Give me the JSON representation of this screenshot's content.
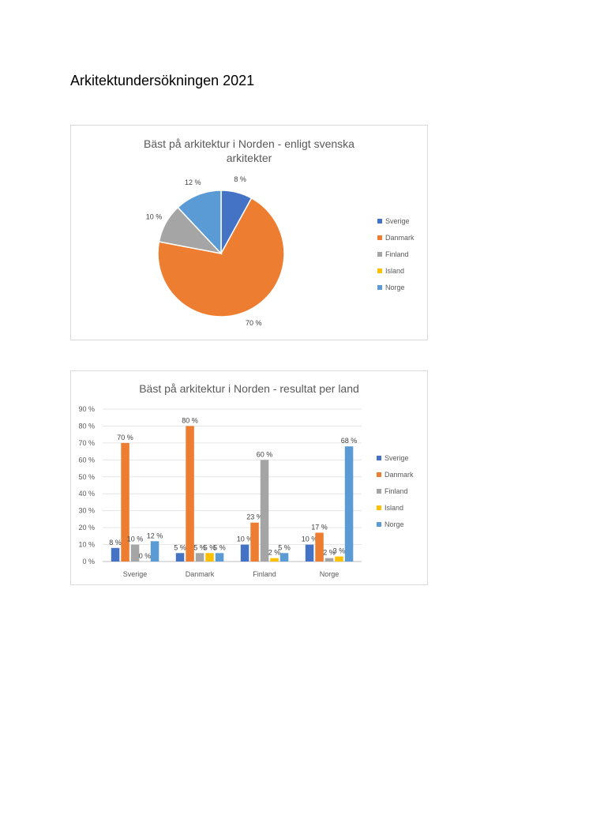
{
  "document": {
    "title": "Arkitektundersökningen 2021"
  },
  "colors": {
    "Sverige": "#4472c4",
    "Danmark": "#ed7d31",
    "Finland": "#a5a5a5",
    "Island": "#ffc000",
    "Norge": "#5b9bd5"
  },
  "chart_data": [
    {
      "type": "pie",
      "title": "Bäst på arkitektur i Norden - enligt svenska arkitekter",
      "title_lines": [
        "Bäst på arkitektur i Norden - enligt svenska",
        "arkitekter"
      ],
      "categories": [
        "Sverige",
        "Danmark",
        "Finland",
        "Island",
        "Norge"
      ],
      "values": [
        8,
        70,
        10,
        0,
        12
      ],
      "data_labels": [
        "8 %",
        "70 %",
        "10 %",
        "",
        "12 %"
      ],
      "legend": [
        "Sverige",
        "Danmark",
        "Finland",
        "Island",
        "Norge"
      ],
      "legend_position": "right"
    },
    {
      "type": "bar",
      "title": "Bäst på arkitektur i Norden - resultat per land",
      "categories": [
        "Sverige",
        "Danmark",
        "Finland",
        "Norge"
      ],
      "series": [
        {
          "name": "Sverige",
          "values": [
            8,
            5,
            10,
            10
          ],
          "labels": [
            "8 %",
            "5 %",
            "10 %",
            "10 %"
          ]
        },
        {
          "name": "Danmark",
          "values": [
            70,
            80,
            23,
            17
          ],
          "labels": [
            "70 %",
            "80 %",
            "23 %",
            "17 %"
          ]
        },
        {
          "name": "Finland",
          "values": [
            10,
            5,
            60,
            2
          ],
          "labels": [
            "10 %",
            "5 %",
            "60 %",
            "2 %"
          ]
        },
        {
          "name": "Island",
          "values": [
            0,
            5,
            2,
            3
          ],
          "labels": [
            "0 %",
            "5 %",
            "2 %",
            "3 %"
          ]
        },
        {
          "name": "Norge",
          "values": [
            12,
            5,
            5,
            68
          ],
          "labels": [
            "12 %",
            "5 %",
            "5 %",
            "68 %"
          ]
        }
      ],
      "yticks": [
        "0 %",
        "10 %",
        "20 %",
        "30 %",
        "40 %",
        "50 %",
        "60 %",
        "70 %",
        "80 %",
        "90 %"
      ],
      "ylim": [
        0,
        90
      ],
      "grid": true,
      "legend": [
        "Sverige",
        "Danmark",
        "Finland",
        "Island",
        "Norge"
      ],
      "legend_position": "right"
    }
  ]
}
